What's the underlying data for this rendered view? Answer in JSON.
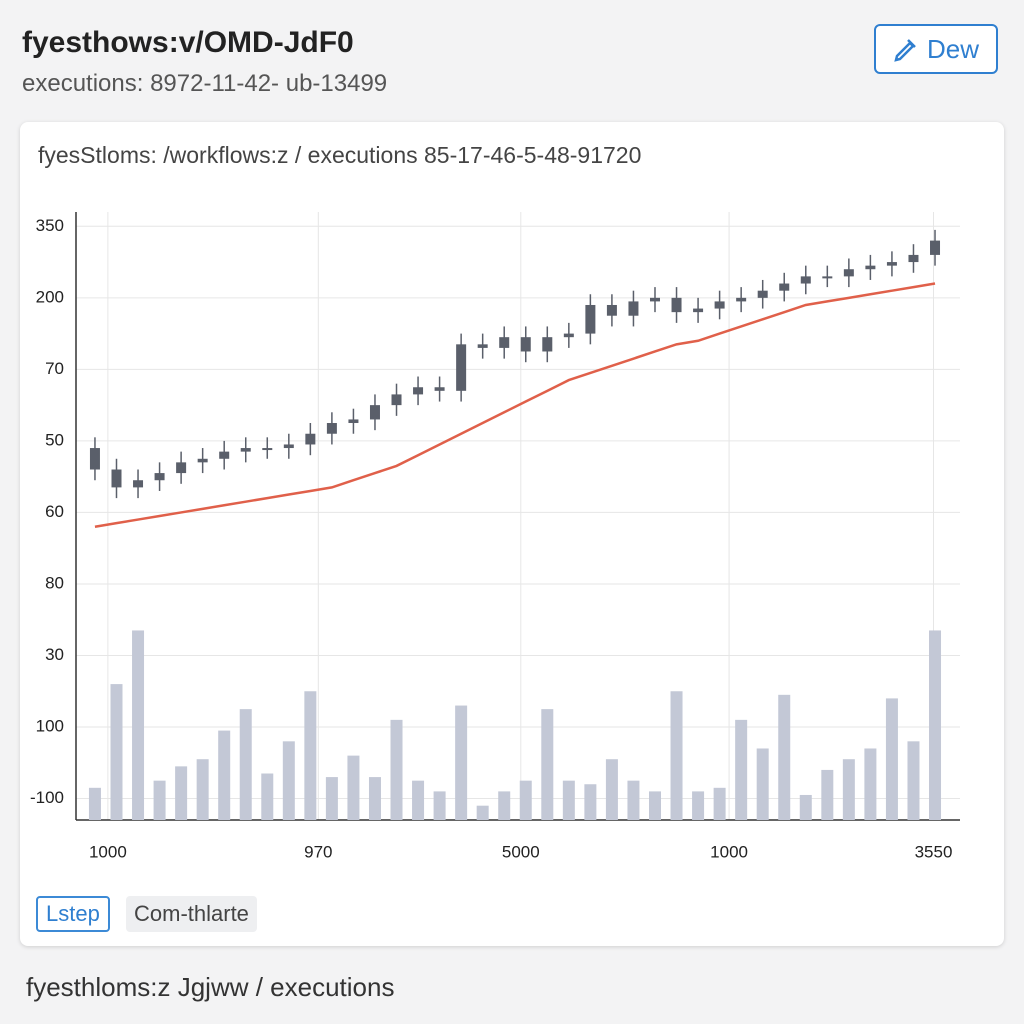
{
  "header": {
    "title": "fyesthows:v/OMD-JdF0",
    "subtitle": "executions: 8972-11-42- ub-13499",
    "button": "Dew"
  },
  "card": {
    "heading": "fyesStloms: /workflows:z / executions 85-17-46-5-48-91720",
    "buttons": [
      "Lstep",
      "Com-thlarte"
    ]
  },
  "footer": "fyesthloms:z Jgjww / executions",
  "chart_data": {
    "type": "candlestick",
    "grid": true,
    "ylim": [
      -0.3,
      8.2
    ],
    "yticks": [
      {
        "value": 0,
        "label": "-100"
      },
      {
        "value": 1,
        "label": "100"
      },
      {
        "value": 2,
        "label": "30"
      },
      {
        "value": 3,
        "label": "80"
      },
      {
        "value": 4,
        "label": "60"
      },
      {
        "value": 5,
        "label": "50"
      },
      {
        "value": 6,
        "label": "70"
      },
      {
        "value": 7,
        "label": "200"
      },
      {
        "value": 8,
        "label": "350"
      }
    ],
    "xlim": [
      -0.88,
      40.16
    ],
    "xticks": [
      {
        "value": 0.6,
        "label": "1000"
      },
      {
        "value": 10.37,
        "label": "970"
      },
      {
        "value": 19.77,
        "label": "5000"
      },
      {
        "value": 29.44,
        "label": "1000"
      },
      {
        "value": 38.93,
        "label": "3550"
      }
    ],
    "candles": {
      "color": "#5a5f6a",
      "open": [
        4.9,
        4.6,
        4.35,
        4.45,
        4.55,
        4.7,
        4.75,
        4.85,
        4.9,
        4.9,
        4.95,
        5.1,
        5.25,
        5.3,
        5.5,
        5.65,
        5.75,
        5.7,
        6.35,
        6.3,
        6.45,
        6.25,
        6.45,
        6.5,
        6.9,
        6.75,
        6.95,
        7.0,
        6.8,
        6.85,
        6.95,
        7.0,
        7.1,
        7.2,
        7.3,
        7.3,
        7.4,
        7.45,
        7.5,
        7.6
      ],
      "high": [
        5.05,
        4.75,
        4.6,
        4.7,
        4.85,
        4.9,
        5.0,
        5.05,
        5.05,
        5.1,
        5.25,
        5.4,
        5.45,
        5.65,
        5.8,
        5.9,
        5.9,
        6.5,
        6.5,
        6.6,
        6.6,
        6.6,
        6.65,
        7.05,
        7.05,
        7.1,
        7.15,
        7.15,
        7.0,
        7.1,
        7.15,
        7.25,
        7.35,
        7.45,
        7.45,
        7.55,
        7.6,
        7.65,
        7.75,
        7.95
      ],
      "low": [
        4.45,
        4.2,
        4.2,
        4.3,
        4.4,
        4.55,
        4.6,
        4.7,
        4.75,
        4.75,
        4.8,
        4.95,
        5.1,
        5.15,
        5.35,
        5.5,
        5.55,
        5.55,
        6.15,
        6.15,
        6.1,
        6.1,
        6.3,
        6.35,
        6.6,
        6.6,
        6.8,
        6.65,
        6.65,
        6.7,
        6.8,
        6.85,
        6.95,
        7.05,
        7.15,
        7.15,
        7.25,
        7.3,
        7.35,
        7.45
      ],
      "close": [
        4.6,
        4.35,
        4.45,
        4.55,
        4.7,
        4.75,
        4.85,
        4.9,
        4.9,
        4.95,
        5.1,
        5.25,
        5.3,
        5.5,
        5.65,
        5.75,
        5.7,
        6.35,
        6.3,
        6.45,
        6.25,
        6.45,
        6.5,
        6.9,
        6.75,
        6.95,
        7.0,
        6.8,
        6.85,
        6.95,
        7.0,
        7.1,
        7.2,
        7.3,
        7.3,
        7.4,
        7.45,
        7.5,
        7.6,
        7.8
      ]
    },
    "line": {
      "color": "#e0604a",
      "values": [
        3.8,
        3.85,
        3.9,
        3.95,
        4.0,
        4.05,
        4.1,
        4.15,
        4.2,
        4.25,
        4.3,
        4.35,
        4.45,
        4.55,
        4.65,
        4.8,
        4.95,
        5.1,
        5.25,
        5.4,
        5.55,
        5.7,
        5.85,
        5.95,
        6.05,
        6.15,
        6.25,
        6.35,
        6.4,
        6.5,
        6.6,
        6.7,
        6.8,
        6.9,
        6.95,
        7.0,
        7.05,
        7.1,
        7.15,
        7.2
      ]
    },
    "volume": {
      "color": "#c3c8d6",
      "values": [
        0.15,
        1.6,
        2.35,
        0.25,
        0.45,
        0.55,
        0.95,
        1.25,
        0.35,
        0.8,
        1.5,
        0.3,
        0.6,
        0.3,
        1.1,
        0.25,
        0.1,
        1.3,
        -0.1,
        0.1,
        0.25,
        1.25,
        0.25,
        0.2,
        0.55,
        0.25,
        0.1,
        1.5,
        0.1,
        0.15,
        1.1,
        0.7,
        1.45,
        0.05,
        0.4,
        0.55,
        0.7,
        1.4,
        0.8,
        2.35
      ]
    }
  }
}
